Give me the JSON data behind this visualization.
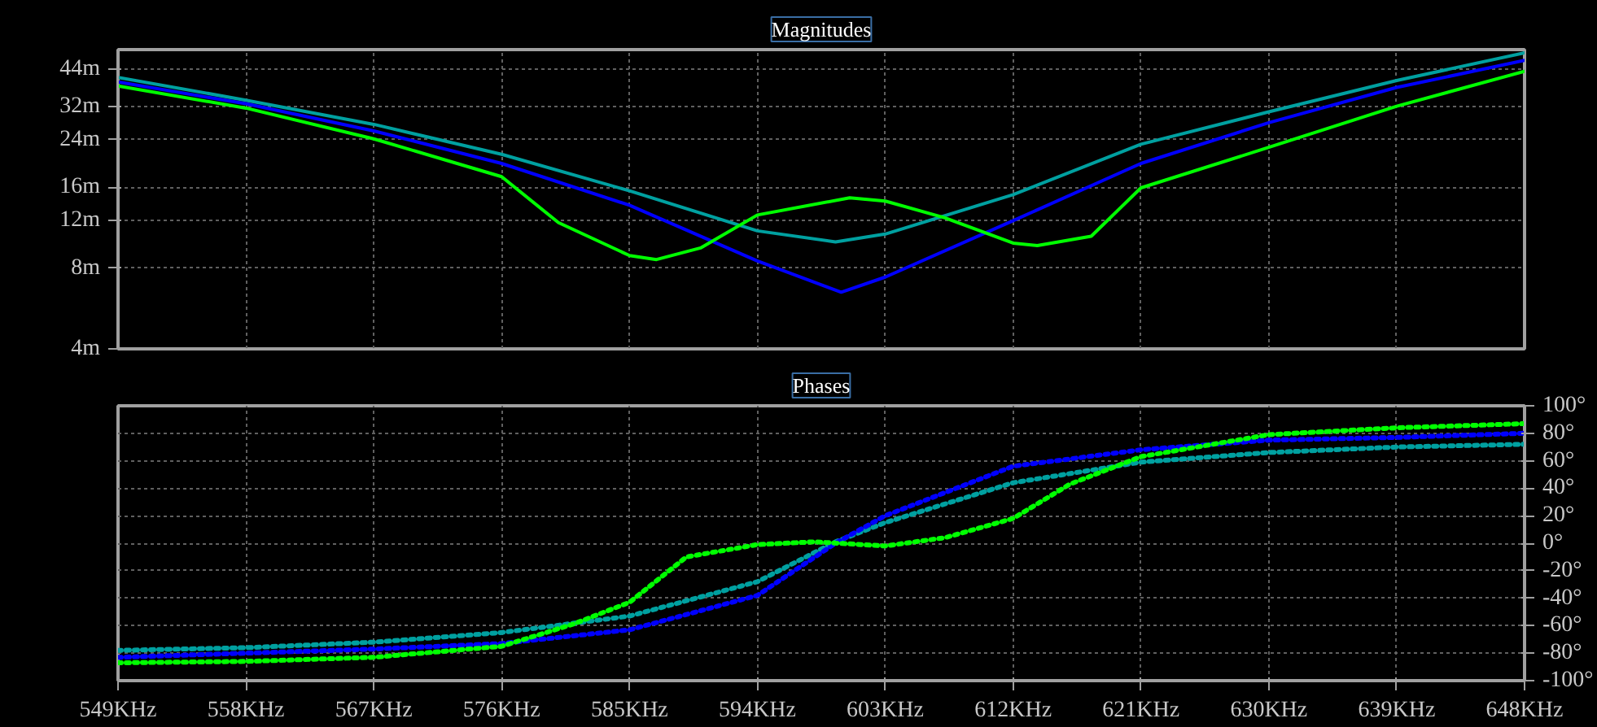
{
  "chart_data": [
    {
      "type": "line",
      "title": "Magnitudes",
      "log": "y",
      "grid": true,
      "line_style": "solid",
      "tick_labels": "y",
      "xlim": [
        549,
        648
      ],
      "ylim": [
        4,
        52
      ],
      "xticks": [
        {
          "value": 549,
          "label": null
        },
        {
          "value": 558,
          "label": null
        },
        {
          "value": 567,
          "label": null
        },
        {
          "value": 576,
          "label": null
        },
        {
          "value": 585,
          "label": null
        },
        {
          "value": 594,
          "label": null
        },
        {
          "value": 603,
          "label": null
        },
        {
          "value": 612,
          "label": null
        },
        {
          "value": 621,
          "label": null
        },
        {
          "value": 630,
          "label": null
        },
        {
          "value": 639,
          "label": null
        },
        {
          "value": 648,
          "label": null
        }
      ],
      "yticks": [
        {
          "value": 4,
          "label": "4m"
        },
        {
          "value": 8,
          "label": "8m"
        },
        {
          "value": 12,
          "label": "12m"
        },
        {
          "value": 16,
          "label": "16m"
        },
        {
          "value": 24,
          "label": "24m"
        },
        {
          "value": 32,
          "label": "32m"
        },
        {
          "value": 44,
          "label": "44m"
        }
      ],
      "series": [
        {
          "color": "#00a0a0",
          "x": [
            549,
            558,
            567,
            576,
            585,
            594,
            599.5,
            603,
            612,
            621,
            630,
            639,
            648
          ],
          "values": [
            41,
            33.7,
            27.4,
            21.2,
            15.5,
            11,
            10,
            10.7,
            15,
            23.1,
            30.5,
            39.9,
            50.6
          ]
        },
        {
          "color": "#0000ff",
          "x": [
            549,
            558,
            567,
            576,
            585,
            594,
            599.9,
            603,
            612,
            621,
            630,
            639,
            648
          ],
          "values": [
            39.4,
            32.7,
            25.9,
            19.6,
            13.7,
            8.5,
            6.5,
            7.4,
            12,
            19.6,
            27.8,
            37.6,
            47.4
          ]
        },
        {
          "color": "#00ff00",
          "x": [
            549,
            558,
            567,
            576,
            580,
            585,
            586.9,
            590,
            594,
            600.5,
            603,
            607.2,
            612,
            613.7,
            617.5,
            621,
            630,
            639,
            648
          ],
          "values": [
            38.1,
            31.5,
            24.2,
            17.5,
            11.8,
            8.9,
            8.6,
            9.5,
            12.6,
            14.6,
            14.2,
            12.3,
            9.9,
            9.7,
            10.5,
            15.9,
            22.5,
            32,
            43.2
          ]
        }
      ]
    },
    {
      "type": "line",
      "title": "Phases",
      "grid": true,
      "line_style": "dotted",
      "xlim": [
        549,
        648
      ],
      "ylim": [
        -100,
        100
      ],
      "xticks": [
        {
          "value": 549,
          "label": "549KHz"
        },
        {
          "value": 558,
          "label": "558KHz"
        },
        {
          "value": 567,
          "label": "567KHz"
        },
        {
          "value": 576,
          "label": "576KHz"
        },
        {
          "value": 585,
          "label": "585KHz"
        },
        {
          "value": 594,
          "label": "594KHz"
        },
        {
          "value": 603,
          "label": "603KHz"
        },
        {
          "value": 612,
          "label": "612KHz"
        },
        {
          "value": 621,
          "label": "621KHz"
        },
        {
          "value": 630,
          "label": "630KHz"
        },
        {
          "value": 639,
          "label": "639KHz"
        },
        {
          "value": 648,
          "label": "648KHz"
        }
      ],
      "yticks": [
        {
          "value": -100,
          "label": "-100°"
        },
        {
          "value": -80,
          "label": "-80°"
        },
        {
          "value": -60,
          "label": "-60°"
        },
        {
          "value": -40,
          "label": "-40°"
        },
        {
          "value": -20,
          "label": "-20°"
        },
        {
          "value": 0,
          "label": "0°"
        },
        {
          "value": 20,
          "label": "20°"
        },
        {
          "value": 40,
          "label": "40°"
        },
        {
          "value": 60,
          "label": "60°"
        },
        {
          "value": 80,
          "label": "80°"
        },
        {
          "value": 100,
          "label": "100°"
        }
      ],
      "series": [
        {
          "color": "#00a0a0",
          "x": [
            549,
            558,
            567,
            576,
            585,
            594,
            599.5,
            603,
            612,
            621,
            630,
            639,
            648
          ],
          "values": [
            -78,
            -76,
            -72,
            -65,
            -53,
            -28,
            1,
            15,
            44,
            59,
            66,
            70,
            72
          ]
        },
        {
          "color": "#0000ff",
          "x": [
            549,
            558,
            567,
            576,
            585,
            594,
            599.5,
            603,
            612,
            621,
            630,
            639,
            648
          ],
          "values": [
            -83,
            -80,
            -77,
            -73,
            -63,
            -38,
            0,
            20,
            56,
            68,
            75,
            77,
            80
          ]
        },
        {
          "color": "#00ff00",
          "x": [
            549,
            558,
            567,
            576,
            581,
            585,
            589,
            594,
            598,
            603,
            607.2,
            612,
            616,
            621,
            630,
            639,
            648
          ],
          "values": [
            -87,
            -86,
            -83,
            -75,
            -59,
            -43,
            -10,
            -1,
            1,
            -2,
            4,
            18,
            43,
            63,
            79,
            84,
            87
          ]
        }
      ]
    }
  ]
}
